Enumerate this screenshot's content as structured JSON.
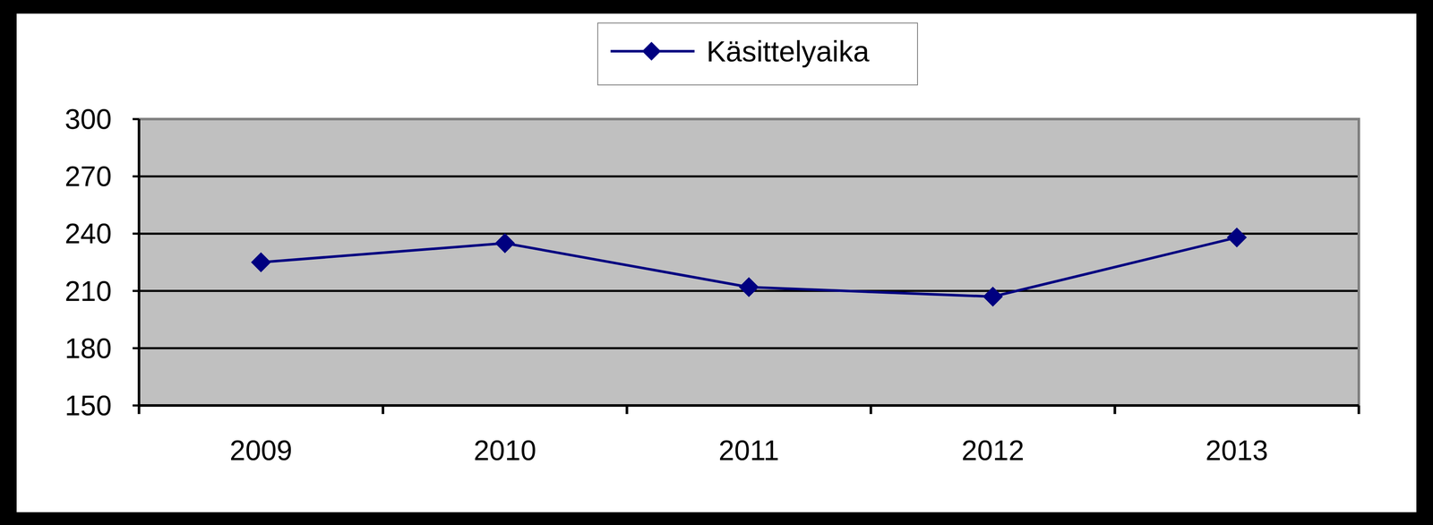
{
  "chart_data": {
    "type": "line",
    "categories": [
      "2009",
      "2010",
      "2011",
      "2012",
      "2013"
    ],
    "series": [
      {
        "name": "Käsittelyaika",
        "color": "#000080",
        "values": [
          225,
          235,
          212,
          207,
          238
        ],
        "marker": "diamond"
      }
    ],
    "ylim": [
      150,
      300
    ],
    "yticks": [
      150,
      180,
      210,
      240,
      270,
      300
    ],
    "grid": true,
    "legend": "top"
  }
}
